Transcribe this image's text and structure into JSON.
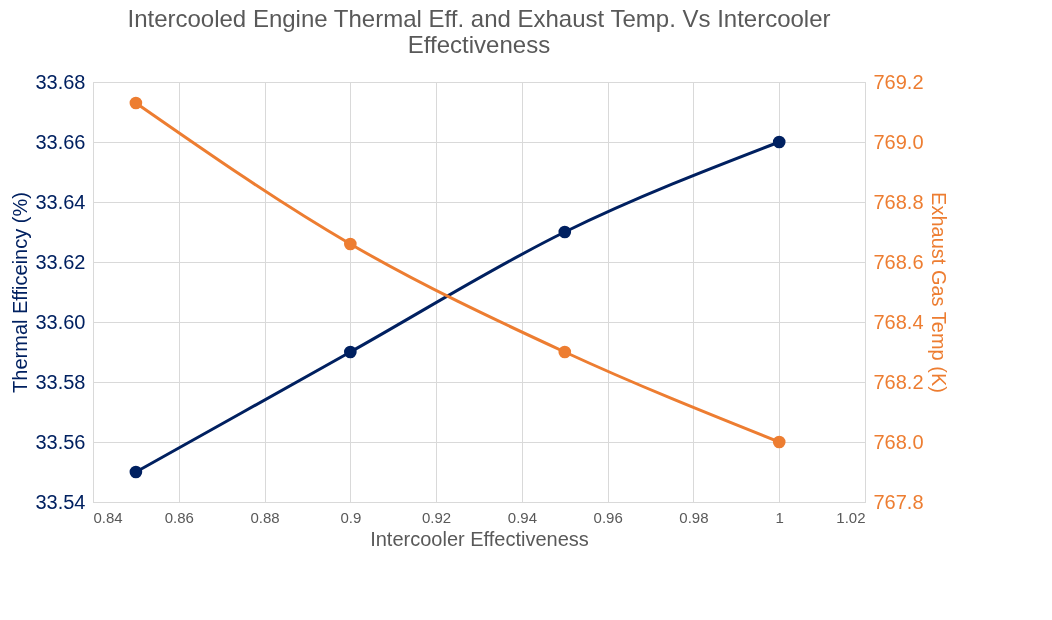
{
  "chart_data": {
    "type": "line",
    "title": "Intercooled Engine Thermal Eff. and Exhaust Temp. Vs Intercooler Effectiveness",
    "xlabel": "Intercooler Effectiveness",
    "ylabel": "Thermal Efficeincy (%)",
    "y2label": "Exhaust Gas Temp (K)",
    "x": [
      0.85,
      0.9,
      0.95,
      1
    ],
    "series": [
      {
        "color": "#002060",
        "values": [
          33.55,
          33.59,
          33.63,
          33.66
        ]
      },
      {
        "color": "#ed7d31",
        "values": [
          769.13,
          768.66,
          768.3,
          768.0
        ],
        "axis": "y2"
      }
    ],
    "xlim": [
      0.84,
      1.02
    ],
    "xticks": [
      0.84,
      0.86,
      0.88,
      0.9,
      0.92,
      0.94,
      0.96,
      0.98,
      1,
      1.02
    ],
    "ylim": [
      33.54,
      33.68
    ],
    "yticks": [
      33.54,
      33.56,
      33.58,
      {
        "value": 33.6,
        "label": "33.60"
      },
      33.62,
      33.64,
      33.66,
      33.68
    ],
    "y2lim": [
      767.8,
      769.2
    ],
    "y2ticks": [
      767.8,
      {
        "value": 768,
        "label": "768.0"
      },
      768.2,
      768.4,
      768.6,
      768.8,
      {
        "value": 769,
        "label": "769.0"
      },
      769.2
    ],
    "grid": true,
    "marker": "circle",
    "line_style": "solid"
  }
}
